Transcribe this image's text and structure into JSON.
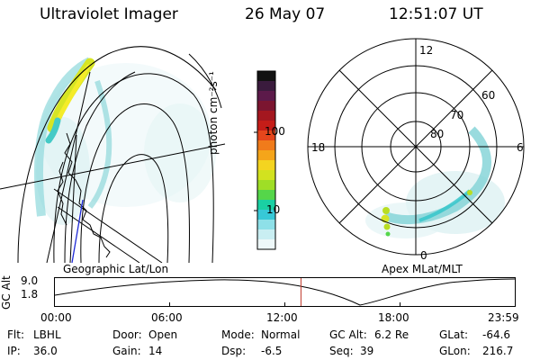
{
  "header": {
    "instrument": "Ultraviolet Imager",
    "date": "26 May 07",
    "time": "12:51:07 UT"
  },
  "colorbar": {
    "unit_label": "photon cm⁻²s⁻¹",
    "tick_labels": [
      "100",
      "10"
    ],
    "colors": [
      "#121212",
      "#3a1b3d",
      "#5c1a4a",
      "#7b1530",
      "#a4171f",
      "#c51d18",
      "#e5461c",
      "#f07b1b",
      "#f5a51a",
      "#f4d420",
      "#d2e21f",
      "#9fde26",
      "#55d64a",
      "#1ad0a3",
      "#37c8d7",
      "#8ee0e8",
      "#c9eef2",
      "#eef8f9"
    ]
  },
  "geo_map": {
    "title": "Geographic Lat/Lon"
  },
  "polar_map": {
    "title": "Apex MLat/MLT",
    "lat_labels": [
      "80",
      "70",
      "60"
    ],
    "mlt_labels": [
      "12",
      "18",
      "6",
      "0"
    ]
  },
  "timeline": {
    "ylabel": "GC Alt",
    "y_ticks": [
      "9.0",
      "1.8"
    ],
    "x_ticks": [
      "00:00",
      "06:00",
      "12:00",
      "18:00",
      "23:59"
    ],
    "current_time_fraction": 0.535
  },
  "status": {
    "flt_label": "Flt:",
    "flt_value": "LBHL",
    "ip_label": "IP:",
    "ip_value": "36.0",
    "door_label": "Door:",
    "door_value": "Open",
    "gain_label": "Gain:",
    "gain_value": "14",
    "mode_label": "Mode:",
    "mode_value": "Normal",
    "dsp_label": "Dsp:",
    "dsp_value": "-6.5",
    "gcalt_label": "GC Alt:",
    "gcalt_value": "6.2 Re",
    "seq_label": "Seq:",
    "seq_value": "39",
    "glat_label": "GLat:",
    "glat_value": "-64.6",
    "glon_label": "GLon:",
    "glon_value": "216.7"
  },
  "colors": {
    "emission_low": "#b6e6e8",
    "emission_mid": "#36c7c9",
    "emission_high": "#c8e21c",
    "emission_peak": "#f4ec28",
    "marker_line": "#c0392b",
    "sensor_line": "#1f2ad6"
  }
}
